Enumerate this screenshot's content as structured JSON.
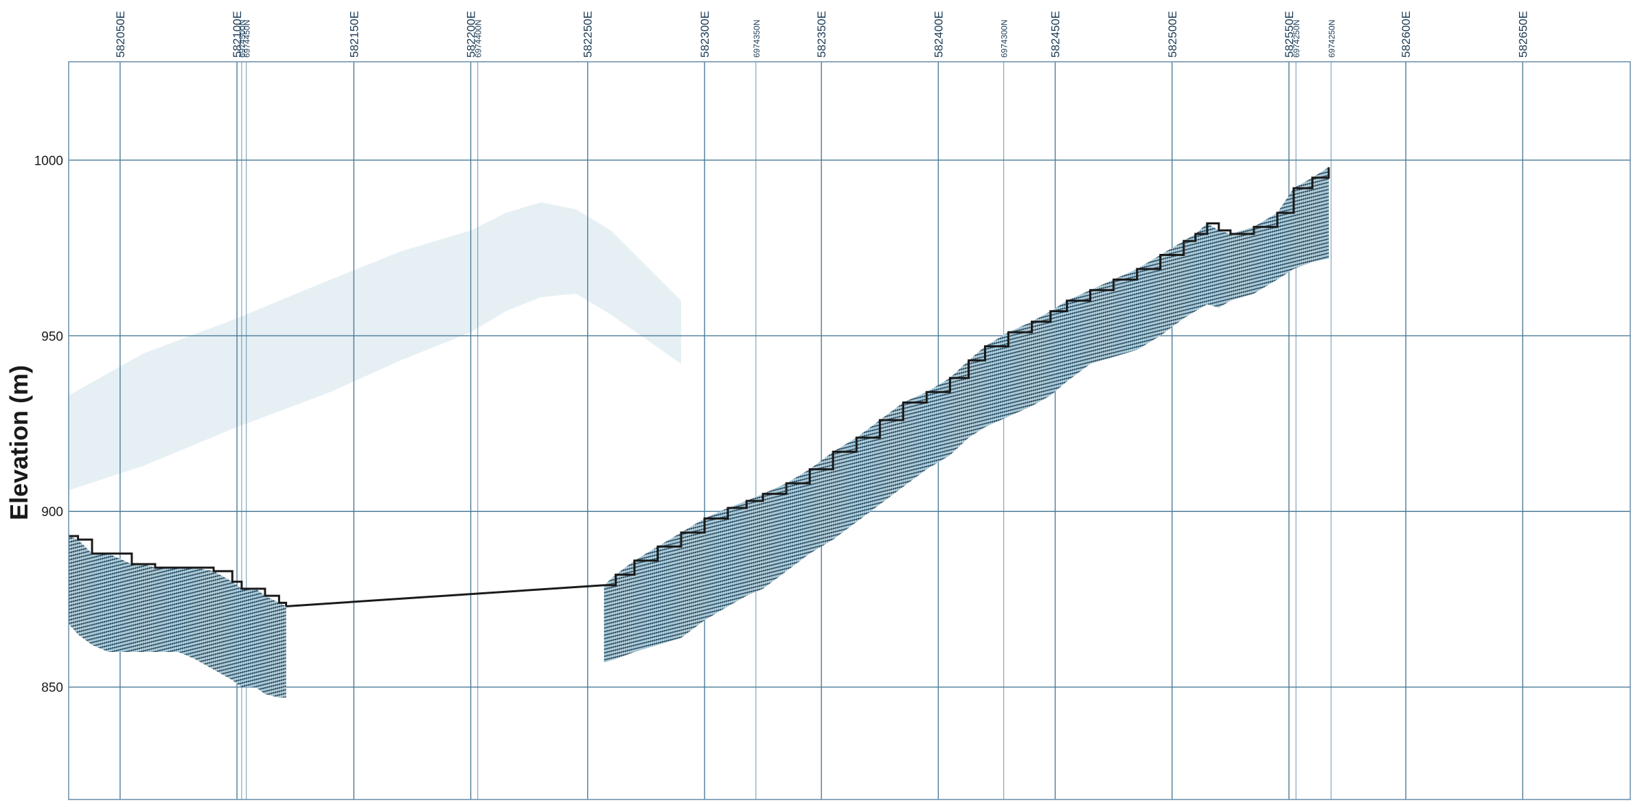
{
  "chart_data": {
    "type": "area",
    "ylabel": "Elevation (m)",
    "ylim": [
      818,
      1028
    ],
    "xlim": [
      582028,
      582696
    ],
    "y_ticks": [
      850,
      900,
      950,
      1000
    ],
    "grid": true,
    "easting_ticks": [
      {
        "value": 582050,
        "label": "582050E"
      },
      {
        "value": 582100,
        "label": "582100E"
      },
      {
        "value": 582150,
        "label": "582150E"
      },
      {
        "value": 582200,
        "label": "582200E"
      },
      {
        "value": 582250,
        "label": "582250E"
      },
      {
        "value": 582300,
        "label": "582300E"
      },
      {
        "value": 582350,
        "label": "582350E"
      },
      {
        "value": 582400,
        "label": "582400E"
      },
      {
        "value": 582450,
        "label": "582450E"
      },
      {
        "value": 582500,
        "label": "582500E"
      },
      {
        "value": 582550,
        "label": "582550E"
      },
      {
        "value": 582600,
        "label": "582600E"
      },
      {
        "value": 582650,
        "label": "582650E"
      }
    ],
    "northing_ticks": [
      {
        "value": 582102,
        "label": "6974500N"
      },
      {
        "value": 582104,
        "label": "6974450N"
      },
      {
        "value": 582203,
        "label": "6974400N"
      },
      {
        "value": 582322,
        "label": "6974350N"
      },
      {
        "value": 582428,
        "label": "6974300N"
      },
      {
        "value": 582553,
        "label": "6974250N"
      },
      {
        "value": 582568,
        "label": "6974250N"
      }
    ],
    "series": [
      {
        "x": [
          582028,
          582032,
          582038,
          582045,
          582055,
          582060,
          582065,
          582075,
          582082,
          582090,
          582098,
          582102,
          582108,
          582112,
          582118,
          582121
        ],
        "y": [
          893,
          892,
          888,
          888,
          885,
          885,
          884,
          884,
          884,
          883,
          880,
          878,
          878,
          876,
          874,
          873
        ],
        "bottom": [
          868,
          865,
          862,
          860,
          860,
          860,
          860,
          860,
          858,
          855,
          852,
          850,
          850,
          848,
          847,
          847
        ]
      },
      {
        "x": [
          582121,
          582257
        ],
        "y": [
          873,
          879
        ]
      },
      {
        "x": [
          582257,
          582262,
          582270,
          582280,
          582290,
          582300,
          582310,
          582318,
          582325,
          582335,
          582345,
          582355,
          582365,
          582375,
          582385,
          582395,
          582405,
          582413,
          582420,
          582430,
          582440,
          582448,
          582455,
          582465,
          582475,
          582485,
          582495,
          582505,
          582510,
          582515,
          582520,
          582525,
          582535,
          582545,
          582552,
          582560,
          582567
        ],
        "y": [
          879,
          882,
          886,
          890,
          894,
          898,
          901,
          903,
          905,
          908,
          912,
          917,
          921,
          926,
          931,
          934,
          938,
          943,
          947,
          951,
          954,
          957,
          960,
          963,
          966,
          969,
          973,
          977,
          979,
          982,
          980,
          979,
          981,
          985,
          992,
          995,
          998
        ],
        "bottom": [
          857,
          858,
          860,
          862,
          864,
          869,
          873,
          876,
          878,
          883,
          888,
          892,
          897,
          902,
          907,
          912,
          916,
          921,
          924,
          927,
          930,
          933,
          937,
          942,
          944,
          946,
          950,
          955,
          957,
          959,
          958,
          960,
          962,
          966,
          969,
          971,
          972
        ]
      }
    ],
    "ghost_series": {
      "x": [
        582028,
        582060,
        582100,
        582140,
        582170,
        582200,
        582215,
        582230,
        582245,
        582260,
        582275,
        582290
      ],
      "y": [
        933,
        945,
        955,
        966,
        974,
        980,
        985,
        988,
        986,
        980,
        970,
        960
      ],
      "bottom": [
        906,
        913,
        924,
        934,
        943,
        951,
        957,
        961,
        962,
        956,
        949,
        942
      ]
    }
  },
  "colors": {
    "grid": "#4a7a98",
    "frame": "#6f93ad",
    "section_fill": "#8fb6c7",
    "section_stripe": "#1d3f58",
    "surface": "#1a1a1a",
    "ghost": "#dce9ef"
  }
}
